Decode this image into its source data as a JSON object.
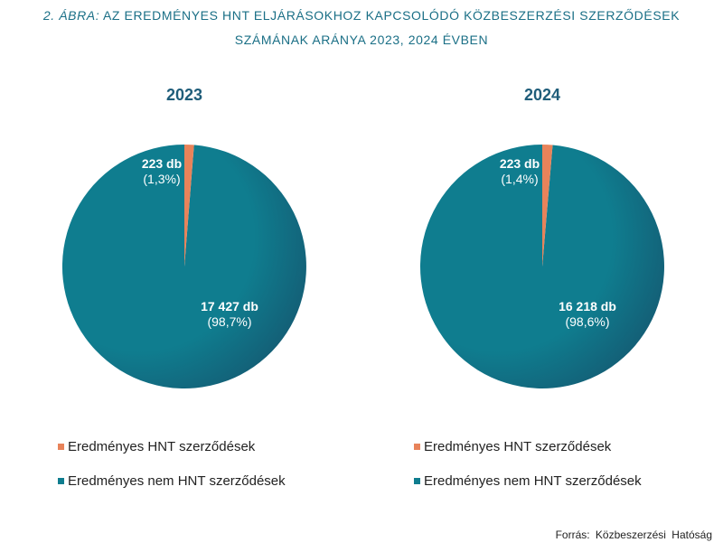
{
  "title": {
    "prefix": "2. ÁBRA:",
    "line1": "AZ EREDMÉNYES HNT ELJÁRÁSOKHOZ KAPCSOLÓDÓ KÖZBESZERZÉSI SZERZŐDÉSEK",
    "line2": "SZÁMÁNAK ARÁNYA 2023, 2024 ÉVBEN"
  },
  "colors": {
    "hnt": "#e8835a",
    "non_hnt": "#0f7d8f",
    "non_hnt_dark": "#16506a",
    "title": "#1a6f86",
    "year": "#1f5d7a"
  },
  "chart_data": [
    {
      "type": "pie",
      "title": "2023",
      "series": [
        {
          "name": "Eredményes HNT szerződések",
          "value": 223,
          "count_label": "223 db",
          "pct_label": "(1,3%)"
        },
        {
          "name": "Eredményes nem HNT szerződések",
          "value": 17427,
          "count_label": "17 427 db",
          "pct_label": "(98,7%)"
        }
      ],
      "legend": [
        "Eredményes HNT szerződések",
        "Eredményes nem HNT szerződések"
      ]
    },
    {
      "type": "pie",
      "title": "2024",
      "series": [
        {
          "name": "Eredményes HNT szerződések",
          "value": 223,
          "count_label": "223 db",
          "pct_label": "(1,4%)"
        },
        {
          "name": "Eredményes nem HNT szerződések",
          "value": 16218,
          "count_label": "16 218 db",
          "pct_label": "(98,6%)"
        }
      ],
      "legend": [
        "Eredményes HNT szerződések",
        "Eredményes nem HNT szerződések"
      ]
    }
  ],
  "source": "Forrás: Közbeszerzési Hatóság"
}
